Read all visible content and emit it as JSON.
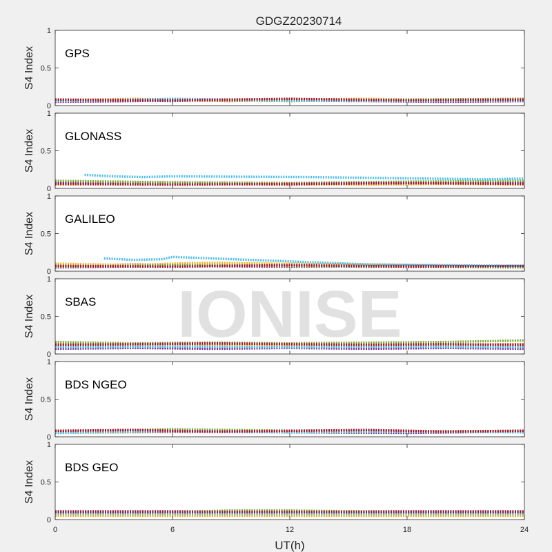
{
  "figure": {
    "title": "GDGZ20230714",
    "xlabel": "UT(h)",
    "watermark": "IONISE"
  },
  "colors": [
    "#0072BD",
    "#D95319",
    "#EDB120",
    "#7E2F8E",
    "#77AC30",
    "#4DBEEE",
    "#A2142F"
  ],
  "chart_data": [
    {
      "type": "scatter",
      "panel_label": "GPS",
      "ylabel": "S4 Index",
      "xlim": [
        0,
        24
      ],
      "ylim": [
        0,
        1
      ],
      "xticks": [
        0,
        6,
        12,
        18,
        24
      ],
      "yticks": [
        0,
        0.5,
        1
      ],
      "series": [
        {
          "x": [
            0,
            3,
            6,
            9,
            12,
            15,
            18,
            21,
            24
          ],
          "y": [
            0.06,
            0.07,
            0.06,
            0.08,
            0.07,
            0.06,
            0.07,
            0.08,
            0.07
          ]
        },
        {
          "x": [
            0,
            3,
            6,
            9,
            12,
            15,
            18,
            21,
            24
          ],
          "y": [
            0.08,
            0.06,
            0.07,
            0.06,
            0.08,
            0.07,
            0.06,
            0.07,
            0.08
          ]
        },
        {
          "x": [
            0,
            4,
            8,
            12,
            16,
            20,
            24
          ],
          "y": [
            0.07,
            0.09,
            0.07,
            0.08,
            0.09,
            0.07,
            0.08
          ]
        },
        {
          "x": [
            0,
            4,
            8,
            12,
            16,
            20,
            24
          ],
          "y": [
            0.05,
            0.06,
            0.08,
            0.07,
            0.06,
            0.05,
            0.06
          ]
        },
        {
          "x": [
            0,
            6,
            12,
            18,
            24
          ],
          "y": [
            0.07,
            0.08,
            0.06,
            0.08,
            0.09
          ]
        },
        {
          "x": [
            0,
            6,
            12,
            18,
            24
          ],
          "y": [
            0.06,
            0.09,
            0.07,
            0.06,
            0.07
          ]
        },
        {
          "x": [
            0,
            6,
            12,
            18,
            24
          ],
          "y": [
            0.08,
            0.07,
            0.09,
            0.07,
            0.08
          ]
        }
      ]
    },
    {
      "type": "scatter",
      "panel_label": "GLONASS",
      "ylabel": "S4 Index",
      "xlim": [
        0,
        24
      ],
      "ylim": [
        0,
        1
      ],
      "xticks": [
        0,
        6,
        12,
        18,
        24
      ],
      "yticks": [
        0,
        0.5,
        1
      ],
      "series": [
        {
          "x": [
            0,
            3,
            6,
            9,
            12,
            15,
            18,
            21,
            24
          ],
          "y": [
            0.08,
            0.07,
            0.06,
            0.07,
            0.06,
            0.07,
            0.06,
            0.07,
            0.08
          ]
        },
        {
          "x": [
            0,
            4,
            8,
            12,
            16,
            20,
            24
          ],
          "y": [
            0.06,
            0.07,
            0.06,
            0.05,
            0.06,
            0.07,
            0.06
          ]
        },
        {
          "x": [
            0,
            4,
            8,
            12,
            16,
            20,
            24
          ],
          "y": [
            0.05,
            0.06,
            0.07,
            0.06,
            0.05,
            0.06,
            0.05
          ]
        },
        {
          "x": [
            0,
            6,
            12,
            18,
            24
          ],
          "y": [
            0.07,
            0.08,
            0.06,
            0.07,
            0.08
          ]
        },
        {
          "x": [
            0,
            3,
            6,
            12,
            18,
            24
          ],
          "y": [
            0.1,
            0.09,
            0.08,
            0.07,
            0.09,
            0.1
          ]
        },
        {
          "x": [
            1.5,
            3,
            4.5,
            6,
            13,
            16,
            22,
            24
          ],
          "y": [
            0.18,
            0.16,
            0.15,
            0.16,
            0.15,
            0.14,
            0.12,
            0.13
          ]
        },
        {
          "x": [
            0,
            6,
            12,
            18,
            24
          ],
          "y": [
            0.06,
            0.05,
            0.06,
            0.07,
            0.06
          ]
        }
      ]
    },
    {
      "type": "scatter",
      "panel_label": "GALILEO",
      "ylabel": "S4 Index",
      "xlim": [
        0,
        24
      ],
      "ylim": [
        0,
        1
      ],
      "xticks": [
        0,
        6,
        12,
        18,
        24
      ],
      "yticks": [
        0,
        0.5,
        1
      ],
      "series": [
        {
          "x": [
            0,
            4,
            8,
            12,
            16,
            20,
            24
          ],
          "y": [
            0.06,
            0.07,
            0.08,
            0.07,
            0.06,
            0.07,
            0.06
          ]
        },
        {
          "x": [
            0,
            4,
            8,
            12,
            16,
            20,
            24
          ],
          "y": [
            0.07,
            0.09,
            0.08,
            0.07,
            0.08,
            0.07,
            0.06
          ]
        },
        {
          "x": [
            0,
            2,
            4,
            6,
            8,
            24
          ],
          "y": [
            0.1,
            0.09,
            0.08,
            0.1,
            0.11,
            0.06
          ]
        },
        {
          "x": [
            0,
            6,
            12,
            18,
            24
          ],
          "y": [
            0.05,
            0.07,
            0.06,
            0.07,
            0.06
          ]
        },
        {
          "x": [
            0,
            6,
            12,
            18,
            24
          ],
          "y": [
            0.06,
            0.08,
            0.07,
            0.06,
            0.05
          ]
        },
        {
          "x": [
            2.5,
            4,
            5.5,
            6,
            16,
            20,
            24
          ],
          "y": [
            0.17,
            0.15,
            0.16,
            0.19,
            0.09,
            0.08,
            0.07
          ]
        },
        {
          "x": [
            0,
            6,
            12,
            18,
            24
          ],
          "y": [
            0.07,
            0.06,
            0.08,
            0.06,
            0.07
          ]
        }
      ]
    },
    {
      "type": "scatter",
      "panel_label": "SBAS",
      "ylabel": "S4 Index",
      "xlim": [
        0,
        24
      ],
      "ylim": [
        0,
        1
      ],
      "xticks": [
        0,
        6,
        12,
        18,
        24
      ],
      "yticks": [
        0,
        0.5,
        1
      ],
      "series": [
        {
          "x": [
            0,
            4,
            8,
            12,
            16,
            20,
            24
          ],
          "y": [
            0.08,
            0.09,
            0.08,
            0.09,
            0.08,
            0.09,
            0.08
          ]
        },
        {
          "x": [
            0,
            4,
            8,
            12,
            16,
            20,
            24
          ],
          "y": [
            0.13,
            0.12,
            0.13,
            0.12,
            0.13,
            0.12,
            0.13
          ]
        },
        {
          "x": [
            0,
            4,
            8,
            12,
            16,
            20,
            24
          ],
          "y": [
            0.1,
            0.11,
            0.1,
            0.11,
            0.1,
            0.11,
            0.1
          ]
        },
        {
          "x": [
            0,
            4,
            8,
            12,
            16,
            20,
            24
          ],
          "y": [
            0.07,
            0.08,
            0.07,
            0.08,
            0.07,
            0.08,
            0.07
          ]
        },
        {
          "x": [
            0,
            4,
            8,
            12,
            16,
            20,
            24
          ],
          "y": [
            0.16,
            0.14,
            0.15,
            0.14,
            0.15,
            0.16,
            0.18
          ]
        },
        {
          "x": [
            0,
            6,
            12,
            18,
            24
          ],
          "y": [
            0.09,
            0.1,
            0.09,
            0.1,
            0.09
          ]
        },
        {
          "x": [
            0,
            4,
            8,
            12,
            16,
            20,
            24
          ],
          "y": [
            0.12,
            0.13,
            0.14,
            0.13,
            0.12,
            0.13,
            0.12
          ]
        }
      ]
    },
    {
      "type": "scatter",
      "panel_label": "BDS NGEO",
      "ylabel": "S4 Index",
      "xlim": [
        0,
        24
      ],
      "ylim": [
        0,
        1
      ],
      "xticks": [
        0,
        6,
        12,
        18,
        24
      ],
      "yticks": [
        0,
        0.5,
        1
      ],
      "series": [
        {
          "x": [
            0,
            4,
            8,
            12,
            16,
            20,
            24
          ],
          "y": [
            0.06,
            0.07,
            0.08,
            0.06,
            0.07,
            0.06,
            0.08
          ]
        },
        {
          "x": [
            0,
            4,
            8,
            12,
            16,
            20,
            24
          ],
          "y": [
            0.07,
            0.08,
            0.07,
            0.06,
            0.08,
            0.07,
            0.06
          ]
        },
        {
          "x": [
            0,
            4,
            8,
            12,
            16,
            20,
            24
          ],
          "y": [
            0.05,
            0.06,
            0.07,
            0.06,
            0.05,
            0.06,
            0.07
          ]
        },
        {
          "x": [
            0,
            6,
            12,
            18,
            24
          ],
          "y": [
            0.06,
            0.07,
            0.06,
            0.05,
            0.07
          ]
        },
        {
          "x": [
            0,
            6,
            12,
            18,
            24
          ],
          "y": [
            0.07,
            0.1,
            0.08,
            0.07,
            0.08
          ]
        },
        {
          "x": [
            0,
            6,
            12,
            18,
            24
          ],
          "y": [
            0.05,
            0.08,
            0.06,
            0.07,
            0.06
          ]
        },
        {
          "x": [
            0,
            4,
            8,
            12,
            16,
            20,
            24
          ],
          "y": [
            0.08,
            0.09,
            0.07,
            0.08,
            0.09,
            0.07,
            0.08
          ]
        }
      ]
    },
    {
      "type": "scatter",
      "panel_label": "BDS GEO",
      "ylabel": "S4 Index",
      "xlim": [
        0,
        24
      ],
      "ylim": [
        0,
        1
      ],
      "xticks": [
        0,
        6,
        12,
        18,
        24
      ],
      "yticks": [
        0,
        0.5,
        1
      ],
      "series": [
        {
          "x": [
            0,
            6,
            12,
            18,
            24
          ],
          "y": [
            0.09,
            0.09,
            0.09,
            0.09,
            0.09
          ]
        },
        {
          "x": [
            0,
            6,
            12,
            18,
            24
          ],
          "y": [
            0.07,
            0.07,
            0.07,
            0.07,
            0.07
          ]
        },
        {
          "x": [
            0,
            6,
            12,
            18,
            24
          ],
          "y": [
            0.05,
            0.05,
            0.05,
            0.05,
            0.05
          ]
        },
        {
          "x": [
            0,
            6,
            12,
            18,
            24
          ],
          "y": [
            0.11,
            0.11,
            0.11,
            0.11,
            0.11
          ]
        },
        {
          "x": [
            0,
            6,
            9,
            12,
            18,
            24
          ],
          "y": [
            0.1,
            0.1,
            0.12,
            0.12,
            0.1,
            0.1
          ]
        },
        {
          "x": [
            0,
            6,
            12,
            18,
            24
          ],
          "y": [
            0.08,
            0.08,
            0.08,
            0.08,
            0.08
          ]
        },
        {
          "x": [
            0,
            6,
            12,
            18,
            24
          ],
          "y": [
            0.1,
            0.1,
            0.1,
            0.1,
            0.1
          ]
        }
      ]
    }
  ]
}
